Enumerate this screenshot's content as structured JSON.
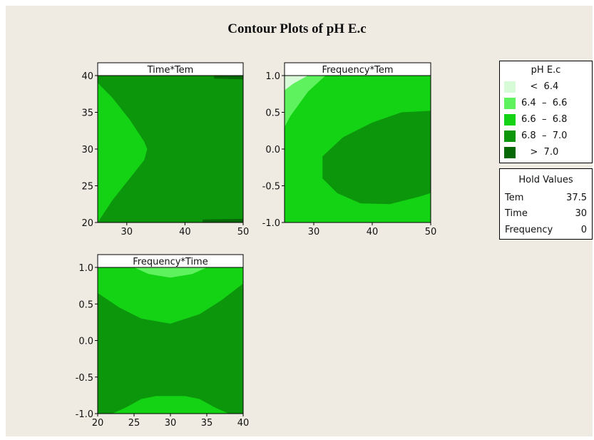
{
  "title": "Contour Plots of pH E.c",
  "colors": {
    "page_bg": "#efebe3",
    "lt_6_4": "#d6fbd6",
    "r_6_4_6_6": "#5ef25e",
    "r_6_6_6_8": "#14d214",
    "r_6_8_7_0": "#0c960c",
    "gt_7_0": "#056805"
  },
  "legend": {
    "title": "pH E.c",
    "items": [
      {
        "label": "   <  6.4",
        "color": "#d6fbd6"
      },
      {
        "label": "6.4  –  6.6",
        "color": "#5ef25e"
      },
      {
        "label": "6.6  –  6.8",
        "color": "#14d214"
      },
      {
        "label": "6.8  –  7.0",
        "color": "#0c960c"
      },
      {
        "label": "   >  7.0",
        "color": "#056805"
      }
    ]
  },
  "hold_values": {
    "title": "Hold Values",
    "rows": [
      {
        "name": "Tem",
        "value": "37.5"
      },
      {
        "name": "Time",
        "value": "30"
      },
      {
        "name": "Frequency",
        "value": "0"
      }
    ]
  },
  "chart_data": [
    {
      "type": "contour",
      "title": "Time*Tem",
      "xlabel": "",
      "ylabel": "",
      "xlim": [
        25,
        50
      ],
      "ylim": [
        20,
        40
      ],
      "xticks": [
        "30",
        "40",
        "50"
      ],
      "yticks": [
        "20",
        "25",
        "30",
        "35",
        "40"
      ],
      "base_level": "6.8 – 7.0",
      "regions": [
        {
          "level": "6.6 – 6.8",
          "points": [
            [
              25,
              39
            ],
            [
              27.5,
              37
            ],
            [
              30.5,
              34
            ],
            [
              33,
              31
            ],
            [
              33.5,
              30
            ],
            [
              33,
              28.5
            ],
            [
              30.5,
              26
            ],
            [
              27.5,
              23
            ],
            [
              25,
              20
            ]
          ]
        },
        {
          "level": "> 7.0",
          "points": [
            [
              45,
              40
            ],
            [
              50,
              40
            ],
            [
              50,
              39.5
            ],
            [
              45,
              39.6
            ]
          ]
        },
        {
          "level": "> 7.0",
          "points": [
            [
              43,
              20
            ],
            [
              50,
              20
            ],
            [
              50,
              20.5
            ],
            [
              43,
              20.4
            ]
          ]
        }
      ]
    },
    {
      "type": "contour",
      "title": "Frequency*Tem",
      "xlabel": "",
      "ylabel": "",
      "xlim": [
        25,
        50
      ],
      "ylim": [
        -1.0,
        1.0
      ],
      "xticks": [
        "30",
        "40",
        "50"
      ],
      "yticks": [
        "-1.0",
        "-0.5",
        "0.0",
        "0.5",
        "1.0"
      ],
      "base_level": "6.6 – 6.8",
      "regions": [
        {
          "level": "6.4 – 6.6",
          "points": [
            [
              25,
              1.0
            ],
            [
              32,
              1.0
            ],
            [
              29,
              0.78
            ],
            [
              26,
              0.45
            ],
            [
              25,
              0.3
            ]
          ]
        },
        {
          "level": "< 6.4",
          "points": [
            [
              25,
              1.0
            ],
            [
              29,
              1.0
            ],
            [
              26.5,
              0.89
            ],
            [
              25,
              0.8
            ]
          ]
        },
        {
          "level": "6.8 – 7.0",
          "points": [
            [
              50,
              0.52
            ],
            [
              45,
              0.5
            ],
            [
              40,
              0.36
            ],
            [
              35,
              0.16
            ],
            [
              31.5,
              -0.1
            ],
            [
              31.5,
              -0.4
            ],
            [
              34,
              -0.6
            ],
            [
              38,
              -0.74
            ],
            [
              43,
              -0.75
            ],
            [
              48,
              -0.65
            ],
            [
              50,
              -0.6
            ]
          ]
        }
      ]
    },
    {
      "type": "contour",
      "title": "Frequency*Time",
      "xlabel": "",
      "ylabel": "",
      "xlim": [
        20,
        40
      ],
      "ylim": [
        -1.0,
        1.0
      ],
      "xticks": [
        "20",
        "25",
        "30",
        "35",
        "40"
      ],
      "yticks": [
        "-1.0",
        "-0.5",
        "0.0",
        "0.5",
        "1.0"
      ],
      "base_level": "6.8 – 7.0",
      "regions": [
        {
          "level": "6.6 – 6.8",
          "points": [
            [
              20,
              1.0
            ],
            [
              40,
              1.0
            ],
            [
              40,
              0.78
            ],
            [
              37,
              0.55
            ],
            [
              34,
              0.36
            ],
            [
              30,
              0.23
            ],
            [
              26,
              0.3
            ],
            [
              23,
              0.45
            ],
            [
              20,
              0.65
            ]
          ]
        },
        {
          "level": "6.4 – 6.6",
          "points": [
            [
              25,
              1.0
            ],
            [
              35,
              1.0
            ],
            [
              33,
              0.91
            ],
            [
              30,
              0.86
            ],
            [
              27,
              0.91
            ]
          ]
        },
        {
          "level": "6.6 – 6.8",
          "points": [
            [
              22,
              -1.0
            ],
            [
              38,
              -1.0
            ],
            [
              36,
              -0.91
            ],
            [
              34,
              -0.8
            ],
            [
              32,
              -0.76
            ],
            [
              28,
              -0.76
            ],
            [
              26,
              -0.8
            ],
            [
              24,
              -0.91
            ]
          ]
        }
      ]
    }
  ]
}
